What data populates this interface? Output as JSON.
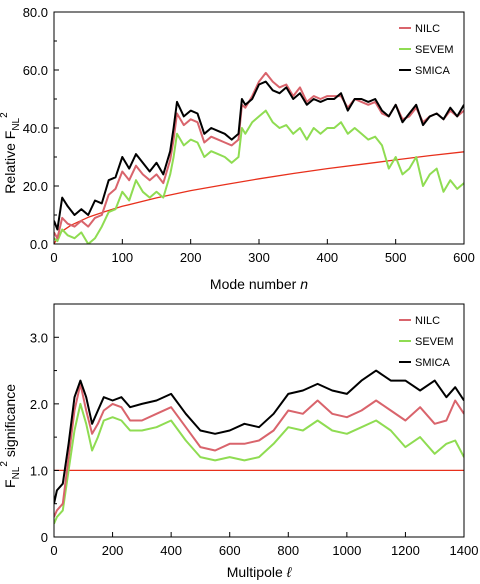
{
  "chart_data": [
    {
      "type": "line",
      "xlabel": "Mode number",
      "xlabel_var": "n",
      "ylabel": "Relative F",
      "ylabel_sub": "NL",
      "ylabel_sup": "2",
      "xlim": [
        0,
        600
      ],
      "ylim": [
        0,
        80
      ],
      "xticks": [
        0,
        100,
        200,
        300,
        400,
        500,
        600
      ],
      "yticks": [
        0,
        20,
        40,
        60,
        80
      ],
      "ytick_labels": [
        "0.0",
        "20.0",
        "40.0",
        "60.0",
        "80.0"
      ],
      "grid": false,
      "legend_position": "top-right",
      "legend": [
        {
          "name": "NILC",
          "color": "#d9646c"
        },
        {
          "name": "SEVEM",
          "color": "#8fdc52"
        },
        {
          "name": "SMICA",
          "color": "#000000"
        }
      ],
      "series": [
        {
          "name": "SMICA",
          "color": "#000000",
          "x": [
            0,
            5,
            12,
            20,
            30,
            40,
            50,
            60,
            70,
            80,
            90,
            100,
            110,
            120,
            130,
            140,
            150,
            160,
            170,
            175,
            180,
            190,
            200,
            210,
            220,
            230,
            240,
            250,
            260,
            270,
            275,
            280,
            290,
            300,
            310,
            320,
            330,
            340,
            350,
            360,
            370,
            380,
            390,
            400,
            410,
            420,
            430,
            440,
            450,
            460,
            470,
            480,
            490,
            500,
            510,
            520,
            530,
            540,
            550,
            560,
            570,
            580,
            590,
            600
          ],
          "y": [
            8,
            5,
            16,
            13,
            10,
            12,
            10,
            15,
            14,
            22,
            23,
            30,
            26,
            31,
            28,
            25,
            28,
            24,
            32,
            40,
            49,
            44,
            46,
            45,
            38,
            40,
            39,
            38,
            36,
            38,
            50,
            48,
            50,
            55,
            56,
            53,
            52,
            54,
            50,
            52,
            48,
            50,
            49,
            50,
            50,
            52,
            46,
            50,
            50,
            49,
            50,
            46,
            44,
            48,
            42,
            45,
            48,
            41,
            44,
            45,
            43,
            47,
            44,
            48
          ]
        },
        {
          "name": "NILC",
          "color": "#d9646c",
          "x": [
            0,
            5,
            12,
            20,
            30,
            40,
            50,
            60,
            70,
            80,
            90,
            100,
            110,
            120,
            130,
            140,
            150,
            160,
            170,
            175,
            180,
            190,
            200,
            210,
            220,
            230,
            240,
            250,
            260,
            270,
            275,
            280,
            290,
            300,
            310,
            320,
            330,
            340,
            350,
            360,
            370,
            380,
            390,
            400,
            410,
            420,
            430,
            440,
            450,
            460,
            470,
            480,
            490,
            500,
            510,
            520,
            530,
            540,
            550,
            560,
            570,
            580,
            590,
            600
          ],
          "y": [
            4,
            2,
            9,
            7,
            6,
            8,
            6,
            9,
            10,
            17,
            19,
            25,
            22,
            27,
            24,
            22,
            24,
            21,
            29,
            36,
            45,
            41,
            43,
            42,
            35,
            37,
            36,
            35,
            34,
            36,
            48,
            47,
            51,
            56,
            59,
            56,
            54,
            55,
            51,
            54,
            49,
            51,
            50,
            51,
            51,
            51,
            47,
            50,
            49,
            48,
            49,
            45,
            44,
            48,
            43,
            44,
            47,
            42,
            44,
            45,
            43,
            46,
            44,
            46
          ]
        },
        {
          "name": "SEVEM",
          "color": "#8fdc52",
          "x": [
            0,
            5,
            12,
            20,
            30,
            40,
            50,
            60,
            70,
            80,
            90,
            100,
            110,
            120,
            130,
            140,
            150,
            160,
            170,
            175,
            180,
            190,
            200,
            210,
            220,
            230,
            240,
            250,
            260,
            270,
            275,
            280,
            290,
            300,
            310,
            320,
            330,
            340,
            350,
            360,
            370,
            380,
            390,
            400,
            410,
            420,
            430,
            440,
            450,
            460,
            470,
            480,
            490,
            500,
            510,
            520,
            530,
            540,
            550,
            560,
            570,
            580,
            590,
            600
          ],
          "y": [
            2,
            1,
            5,
            3,
            2,
            4,
            0,
            2,
            6,
            11,
            12,
            18,
            15,
            22,
            18,
            16,
            18,
            16,
            24,
            30,
            38,
            34,
            36,
            35,
            30,
            32,
            31,
            30,
            28,
            30,
            40,
            38,
            42,
            44,
            46,
            42,
            40,
            41,
            38,
            40,
            36,
            40,
            38,
            40,
            40,
            42,
            38,
            40,
            38,
            36,
            37,
            34,
            26,
            30,
            24,
            26,
            30,
            20,
            24,
            26,
            18,
            22,
            19,
            21
          ]
        },
        {
          "name": "reference",
          "color": "#e8301c",
          "x": [
            0,
            10,
            25,
            50,
            75,
            100,
            150,
            200,
            250,
            300,
            350,
            400,
            450,
            500,
            550,
            600
          ],
          "y": [
            0,
            4.1,
            6.5,
            9.2,
            11.2,
            13.0,
            15.9,
            18.4,
            20.5,
            22.5,
            24.3,
            26.0,
            27.5,
            29.0,
            30.5,
            31.8
          ]
        }
      ]
    },
    {
      "type": "line",
      "xlabel": "Multipole",
      "xlabel_var": "ℓ",
      "ylabel_pre": "F",
      "ylabel_sub": "NL",
      "ylabel_sup": "2",
      "ylabel_post": " significance",
      "xlim": [
        0,
        1400
      ],
      "ylim": [
        0,
        3.5
      ],
      "xticks": [
        0,
        200,
        400,
        600,
        800,
        1000,
        1200,
        1400
      ],
      "yticks": [
        0,
        1,
        2,
        3
      ],
      "ytick_labels": [
        "0",
        "1.0",
        "2.0",
        "3.0"
      ],
      "grid": false,
      "legend_position": "top-right",
      "legend": [
        {
          "name": "NILC",
          "color": "#d9646c"
        },
        {
          "name": "SEVEM",
          "color": "#8fdc52"
        },
        {
          "name": "SMICA",
          "color": "#000000"
        }
      ],
      "series": [
        {
          "name": "SMICA",
          "color": "#000000",
          "x": [
            0,
            10,
            30,
            50,
            70,
            90,
            110,
            130,
            150,
            170,
            200,
            230,
            260,
            300,
            350,
            400,
            450,
            500,
            550,
            600,
            650,
            700,
            750,
            800,
            850,
            900,
            950,
            1000,
            1050,
            1100,
            1150,
            1200,
            1250,
            1300,
            1340,
            1370,
            1400
          ],
          "y": [
            0.5,
            0.7,
            0.8,
            1.4,
            2.1,
            2.35,
            2.1,
            1.7,
            1.9,
            2.1,
            2.05,
            2.1,
            1.95,
            2.0,
            2.05,
            2.15,
            1.85,
            1.6,
            1.55,
            1.6,
            1.7,
            1.65,
            1.85,
            2.15,
            2.2,
            2.3,
            2.2,
            2.15,
            2.35,
            2.5,
            2.35,
            2.35,
            2.2,
            2.35,
            2.1,
            2.25,
            2.05
          ]
        },
        {
          "name": "NILC",
          "color": "#d9646c",
          "x": [
            0,
            10,
            30,
            50,
            70,
            90,
            110,
            130,
            150,
            170,
            200,
            230,
            260,
            300,
            350,
            400,
            450,
            500,
            550,
            600,
            650,
            700,
            750,
            800,
            850,
            900,
            950,
            1000,
            1050,
            1100,
            1150,
            1200,
            1250,
            1300,
            1340,
            1370,
            1400
          ],
          "y": [
            0.3,
            0.4,
            0.5,
            1.2,
            1.9,
            2.3,
            1.9,
            1.55,
            1.7,
            1.9,
            2.0,
            1.95,
            1.75,
            1.75,
            1.85,
            1.95,
            1.65,
            1.35,
            1.3,
            1.4,
            1.4,
            1.45,
            1.6,
            1.9,
            1.85,
            2.05,
            1.85,
            1.8,
            1.9,
            2.05,
            1.9,
            1.75,
            1.95,
            1.7,
            1.75,
            2.05,
            1.85
          ]
        },
        {
          "name": "SEVEM",
          "color": "#8fdc52",
          "x": [
            0,
            10,
            30,
            50,
            70,
            90,
            110,
            130,
            150,
            170,
            200,
            230,
            260,
            300,
            350,
            400,
            450,
            500,
            550,
            600,
            650,
            700,
            750,
            800,
            850,
            900,
            950,
            1000,
            1050,
            1100,
            1150,
            1200,
            1250,
            1300,
            1340,
            1370,
            1400
          ],
          "y": [
            0.2,
            0.3,
            0.4,
            1.0,
            1.6,
            2.0,
            1.7,
            1.3,
            1.5,
            1.75,
            1.8,
            1.75,
            1.6,
            1.6,
            1.65,
            1.75,
            1.45,
            1.2,
            1.15,
            1.2,
            1.15,
            1.2,
            1.4,
            1.65,
            1.6,
            1.75,
            1.6,
            1.55,
            1.65,
            1.75,
            1.6,
            1.35,
            1.5,
            1.25,
            1.4,
            1.45,
            1.2
          ]
        },
        {
          "name": "reference",
          "color": "#e8301c",
          "x": [
            0,
            1400
          ],
          "y": [
            1.0,
            1.0
          ]
        }
      ]
    }
  ]
}
